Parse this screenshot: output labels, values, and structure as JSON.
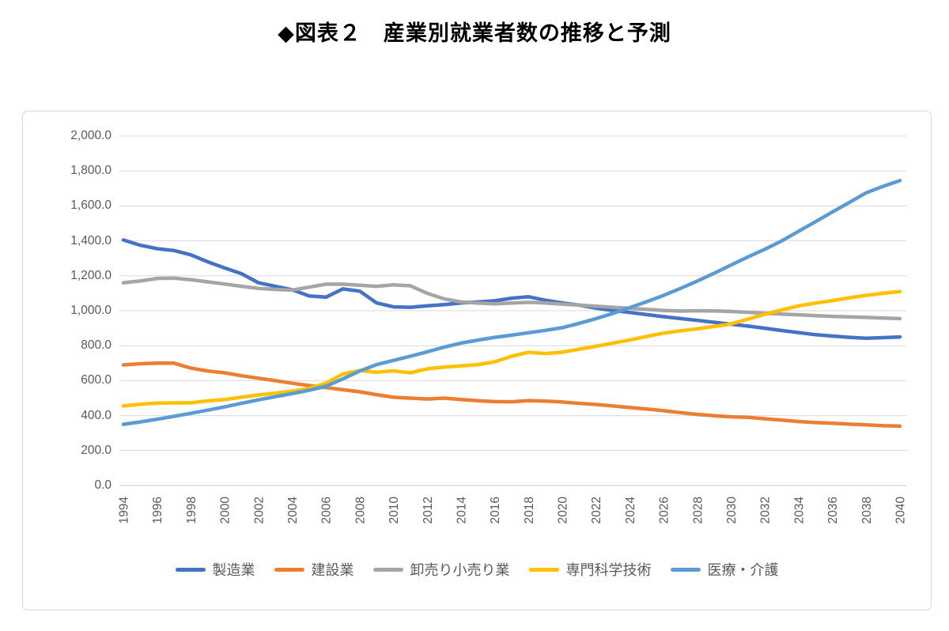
{
  "title": "◆図表２　産業別就業者数の推移と予測",
  "colors": {
    "grid": "#d9d9d9",
    "axis_line": "#c9c9c9",
    "axis_text": "#595959",
    "legend_text": "#595959",
    "chart_border": "#d9d9d9",
    "title_text": "#000000"
  },
  "chart_data": {
    "type": "line",
    "title": "産業別就業者数の推移と予測",
    "xlabel": "",
    "ylabel": "",
    "ylim": [
      0,
      2000
    ],
    "y_tick_step": 200,
    "y_tick_labels": [
      "0.0",
      "200.0",
      "400.0",
      "600.0",
      "800.0",
      "1,000.0",
      "1,200.0",
      "1,400.0",
      "1,600.0",
      "1,800.0",
      "2,000.0"
    ],
    "x": [
      1994,
      1995,
      1996,
      1997,
      1998,
      1999,
      2000,
      2001,
      2002,
      2003,
      2004,
      2005,
      2006,
      2007,
      2008,
      2009,
      2010,
      2011,
      2012,
      2013,
      2014,
      2015,
      2016,
      2017,
      2018,
      2019,
      2020,
      2021,
      2022,
      2023,
      2024,
      2025,
      2026,
      2027,
      2028,
      2029,
      2030,
      2031,
      2032,
      2033,
      2034,
      2035,
      2036,
      2037,
      2038,
      2039,
      2040
    ],
    "x_tick_labels": [
      "1994",
      "1996",
      "1998",
      "2000",
      "2002",
      "2004",
      "2006",
      "2008",
      "2010",
      "2012",
      "2014",
      "2016",
      "2018",
      "2020",
      "2022",
      "2024",
      "2026",
      "2028",
      "2030",
      "2032",
      "2034",
      "2036",
      "2038",
      "2040"
    ],
    "grid": "horizontal",
    "legend_position": "bottom",
    "series": [
      {
        "id": "manufacturing",
        "name": "製造業",
        "color": "#4472C4",
        "values": [
          1405,
          1375,
          1355,
          1345,
          1320,
          1280,
          1245,
          1212,
          1160,
          1140,
          1120,
          1085,
          1078,
          1125,
          1112,
          1045,
          1022,
          1020,
          1028,
          1035,
          1045,
          1050,
          1057,
          1072,
          1080,
          1060,
          1045,
          1032,
          1015,
          1002,
          990,
          978,
          966,
          955,
          945,
          934,
          923,
          912,
          900,
          887,
          875,
          863,
          855,
          848,
          843,
          846,
          850
        ]
      },
      {
        "id": "construction",
        "name": "建設業",
        "color": "#ED7D31",
        "values": [
          690,
          697,
          700,
          700,
          672,
          655,
          645,
          628,
          614,
          600,
          585,
          572,
          560,
          548,
          536,
          520,
          505,
          500,
          495,
          500,
          492,
          485,
          480,
          479,
          486,
          483,
          478,
          470,
          464,
          455,
          446,
          438,
          428,
          417,
          407,
          399,
          393,
          390,
          382,
          374,
          366,
          360,
          356,
          351,
          347,
          342,
          340
        ]
      },
      {
        "id": "wholesale-retail",
        "name": "卸売り小売り業",
        "color": "#A5A5A5",
        "values": [
          1160,
          1170,
          1185,
          1187,
          1178,
          1165,
          1153,
          1140,
          1128,
          1122,
          1118,
          1135,
          1152,
          1152,
          1146,
          1140,
          1148,
          1143,
          1100,
          1068,
          1050,
          1044,
          1040,
          1044,
          1048,
          1045,
          1038,
          1032,
          1026,
          1020,
          1014,
          1008,
          1002,
          998,
          1000,
          999,
          996,
          991,
          986,
          981,
          977,
          972,
          968,
          965,
          962,
          958,
          955
        ]
      },
      {
        "id": "professional-scientific",
        "name": "専門科学技術",
        "color": "#FFC000",
        "values": [
          455,
          465,
          472,
          473,
          473,
          484,
          492,
          505,
          518,
          528,
          540,
          555,
          585,
          638,
          658,
          648,
          656,
          645,
          668,
          678,
          684,
          692,
          708,
          740,
          762,
          755,
          763,
          780,
          797,
          815,
          833,
          853,
          872,
          885,
          897,
          910,
          925,
          952,
          980,
          1005,
          1028,
          1044,
          1058,
          1074,
          1088,
          1100,
          1110
        ]
      },
      {
        "id": "medical-care",
        "name": "医療・介護",
        "color": "#5B9BD5",
        "values": [
          350,
          364,
          379,
          396,
          413,
          431,
          450,
          470,
          490,
          508,
          526,
          545,
          568,
          610,
          655,
          692,
          716,
          740,
          765,
          792,
          815,
          832,
          848,
          860,
          874,
          888,
          903,
          928,
          955,
          985,
          1018,
          1052,
          1088,
          1128,
          1170,
          1215,
          1262,
          1308,
          1352,
          1400,
          1455,
          1510,
          1565,
          1620,
          1675,
          1712,
          1745
        ]
      }
    ]
  }
}
